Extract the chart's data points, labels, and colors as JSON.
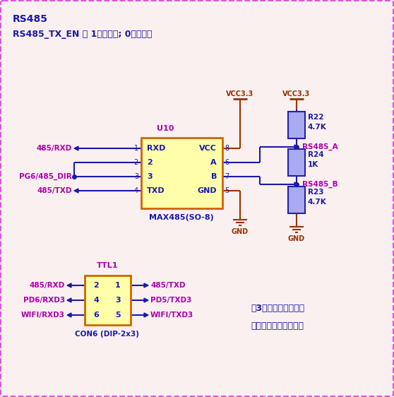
{
  "title1": "RS485",
  "title2": "RS485_TX_EN ： 1发送使能; 0发送禁止",
  "bg_color": "#faf0f0",
  "border_color": "#dd55dd",
  "blue": "#1a1aaa",
  "purple": "#aa00aa",
  "red_brown": "#993300",
  "chip_fill": "#ffffaa",
  "chip_border": "#cc6600",
  "resistor_fill": "#aaaaee",
  "resistor_border": "#2222aa",
  "note_color": "#1a1aaa",
  "note_text1": "这3个电阔缺省不贴，",
  "note_text2": "客户根据需要自行贴装",
  "figsize": [
    5.58,
    5.62
  ],
  "dpi": 100
}
